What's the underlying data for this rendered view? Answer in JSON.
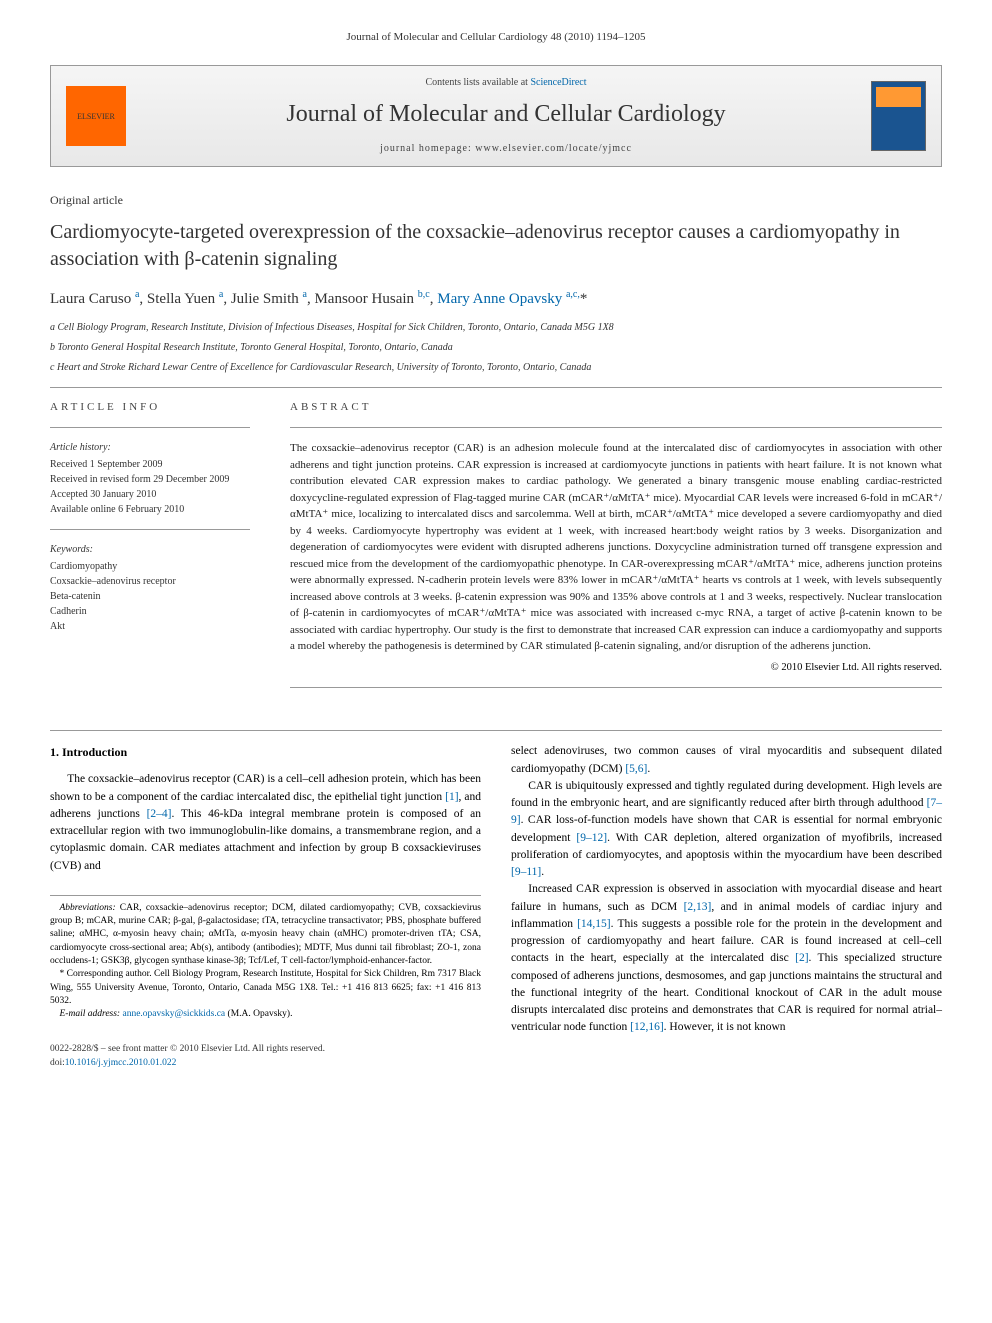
{
  "page_header": "Journal of Molecular and Cellular Cardiology 48 (2010) 1194–1205",
  "banner": {
    "contents_line_prefix": "Contents lists available at ",
    "contents_line_link": "ScienceDirect",
    "journal_title": "Journal of Molecular and Cellular Cardiology",
    "homepage_prefix": "journal homepage: ",
    "homepage_url": "www.elsevier.com/locate/yjmcc",
    "elsevier_label": "ELSEVIER"
  },
  "article": {
    "type": "Original article",
    "title": "Cardiomyocyte-targeted overexpression of the coxsackie–adenovirus receptor causes a cardiomyopathy in association with β-catenin signaling"
  },
  "authors_html": "Laura Caruso <sup>a</sup>, Stella Yuen <sup>a</sup>, Julie Smith <sup>a</sup>, Mansoor Husain <sup>b,c</sup>, <a href='#'>Mary Anne Opavsky</a> <sup>a,c,</sup>*",
  "affiliations": {
    "a": "a Cell Biology Program, Research Institute, Division of Infectious Diseases, Hospital for Sick Children, Toronto, Ontario, Canada M5G 1X8",
    "b": "b Toronto General Hospital Research Institute, Toronto General Hospital, Toronto, Ontario, Canada",
    "c": "c Heart and Stroke Richard Lewar Centre of Excellence for Cardiovascular Research, University of Toronto, Toronto, Ontario, Canada"
  },
  "info": {
    "heading": "ARTICLE INFO",
    "history_label": "Article history:",
    "history": {
      "received": "Received 1 September 2009",
      "revised": "Received in revised form 29 December 2009",
      "accepted": "Accepted 30 January 2010",
      "online": "Available online 6 February 2010"
    },
    "keywords_label": "Keywords:",
    "keywords": [
      "Cardiomyopathy",
      "Coxsackie–adenovirus receptor",
      "Beta-catenin",
      "Cadherin",
      "Akt"
    ]
  },
  "abstract": {
    "heading": "ABSTRACT",
    "text": "The coxsackie–adenovirus receptor (CAR) is an adhesion molecule found at the intercalated disc of cardiomyocytes in association with other adherens and tight junction proteins. CAR expression is increased at cardiomyocyte junctions in patients with heart failure. It is not known what contribution elevated CAR expression makes to cardiac pathology. We generated a binary transgenic mouse enabling cardiac-restricted doxycycline-regulated expression of Flag-tagged murine CAR (mCAR⁺/αMtTA⁺ mice). Myocardial CAR levels were increased 6-fold in mCAR⁺/αMtTA⁺ mice, localizing to intercalated discs and sarcolemma. Well at birth, mCAR⁺/αMtTA⁺ mice developed a severe cardiomyopathy and died by 4 weeks. Cardiomyocyte hypertrophy was evident at 1 week, with increased heart:body weight ratios by 3 weeks. Disorganization and degeneration of cardiomyocytes were evident with disrupted adherens junctions. Doxycycline administration turned off transgene expression and rescued mice from the development of the cardiomyopathic phenotype. In CAR-overexpressing mCAR⁺/αMtTA⁺ mice, adherens junction proteins were abnormally expressed. N-cadherin protein levels were 83% lower in mCAR⁺/αMtTA⁺ hearts vs controls at 1 week, with levels subsequently increased above controls at 3 weeks. β-catenin expression was 90% and 135% above controls at 1 and 3 weeks, respectively. Nuclear translocation of β-catenin in cardiomyocytes of mCAR⁺/αMtTA⁺ mice was associated with increased c-myc RNA, a target of active β-catenin known to be associated with cardiac hypertrophy. Our study is the first to demonstrate that increased CAR expression can induce a cardiomyopathy and supports a model whereby the pathogenesis is determined by CAR stimulated β-catenin signaling, and/or disruption of the adherens junction.",
    "copyright": "© 2010 Elsevier Ltd. All rights reserved."
  },
  "body": {
    "section_heading": "1. Introduction",
    "col1_p1": "The coxsackie–adenovirus receptor (CAR) is a cell–cell adhesion protein, which has been shown to be a component of the cardiac intercalated disc, the epithelial tight junction [1], and adherens junctions [2–4]. This 46-kDa integral membrane protein is composed of an extracellular region with two immunoglobulin-like domains, a transmembrane region, and a cytoplasmic domain. CAR mediates attachment and infection by group B coxsackieviruses (CVB) and",
    "col2_p1": "select adenoviruses, two common causes of viral myocarditis and subsequent dilated cardiomyopathy (DCM) [5,6].",
    "col2_p2": "CAR is ubiquitously expressed and tightly regulated during development. High levels are found in the embryonic heart, and are significantly reduced after birth through adulthood [7–9]. CAR loss-of-function models have shown that CAR is essential for normal embryonic development [9–12]. With CAR depletion, altered organization of myofibrils, increased proliferation of cardiomyocytes, and apoptosis within the myocardium have been described [9–11].",
    "col2_p3": "Increased CAR expression is observed in association with myocardial disease and heart failure in humans, such as DCM [2,13], and in animal models of cardiac injury and inflammation [14,15]. This suggests a possible role for the protein in the development and progression of cardiomyopathy and heart failure. CAR is found increased at cell–cell contacts in the heart, especially at the intercalated disc [2]. This specialized structure composed of adherens junctions, desmosomes, and gap junctions maintains the structural and the functional integrity of the heart. Conditional knockout of CAR in the adult mouse disrupts intercalated disc proteins and demonstrates that CAR is required for normal atrial–ventricular node function [12,16]. However, it is not known"
  },
  "footnotes": {
    "abbrev_label": "Abbreviations:",
    "abbrev": " CAR, coxsackie–adenovirus receptor; DCM, dilated cardiomyopathy; CVB, coxsackievirus group B; mCAR, murine CAR; β-gal, β-galactosidase; tTA, tetracycline transactivator; PBS, phosphate buffered saline; αMHC, α-myosin heavy chain; αMtTa, α-myosin heavy chain (αMHC) promoter-driven tTA; CSA, cardiomyocyte cross-sectional area; Ab(s), antibody (antibodies); MDTF, Mus dunni tail fibroblast; ZO-1, zona occludens-1; GSK3β, glycogen synthase kinase-3β; Tcf/Lef, T cell-factor/lymphoid-enhancer-factor.",
    "corr": "* Corresponding author. Cell Biology Program, Research Institute, Hospital for Sick Children, Rm 7317 Black Wing, 555 University Avenue, Toronto, Ontario, Canada M5G 1X8. Tel.: +1 416 813 6625; fax: +1 416 813 5032.",
    "email_label": "E-mail address: ",
    "email": "anne.opavsky@sickkids.ca",
    "email_suffix": " (M.A. Opavsky)."
  },
  "footer": {
    "issn": "0022-2828/$ – see front matter © 2010 Elsevier Ltd. All rights reserved.",
    "doi_prefix": "doi:",
    "doi": "10.1016/j.yjmcc.2010.01.022"
  },
  "colors": {
    "link": "#0066aa",
    "elsevier_orange": "#ff6600",
    "border_gray": "#999999",
    "text": "#222222"
  }
}
